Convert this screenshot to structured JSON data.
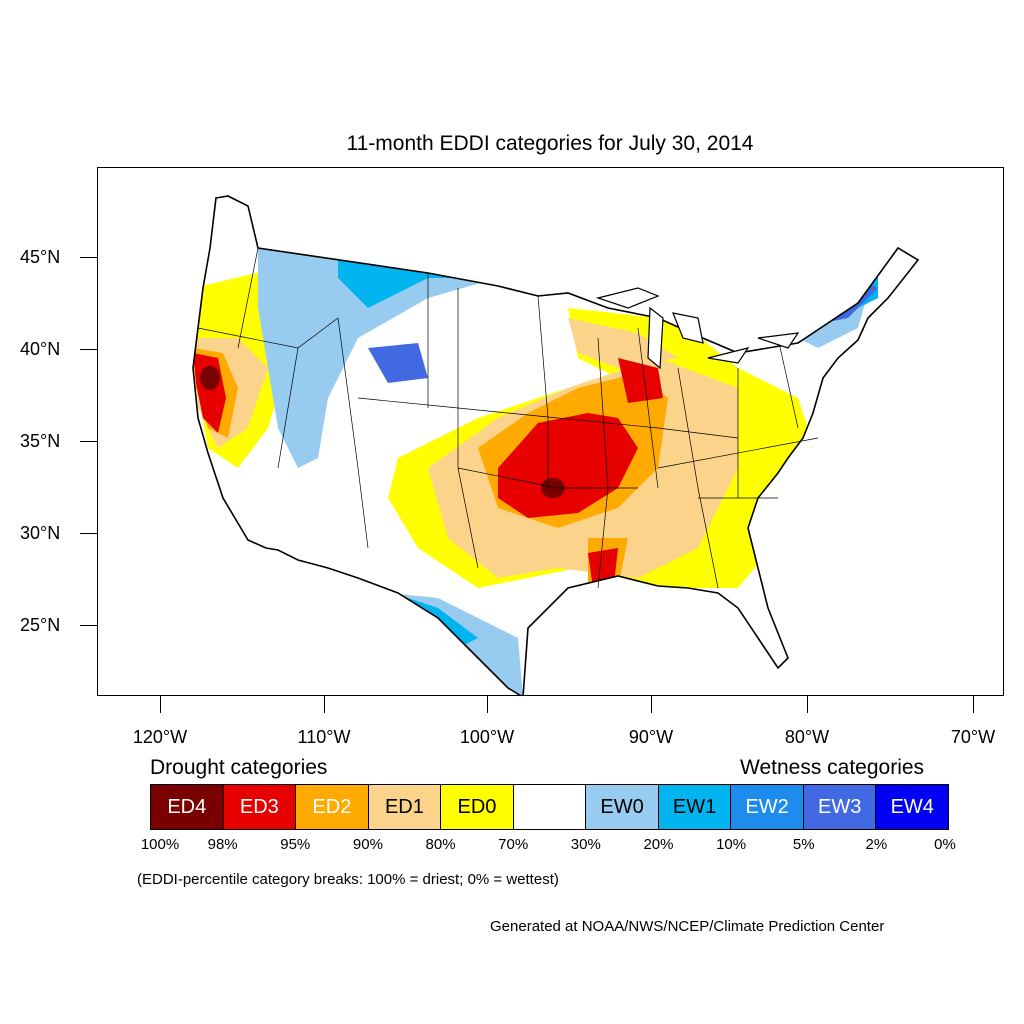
{
  "title": "11-month EDDI categories for July 30, 2014",
  "lat_labels": [
    "45°N",
    "40°N",
    "35°N",
    "30°N",
    "25°N"
  ],
  "lon_labels": [
    "120°W",
    "110°W",
    "100°W",
    "90°W",
    "80°W",
    "70°W"
  ],
  "legend": {
    "drought_heading": "Drought categories",
    "wetness_heading": "Wetness categories",
    "categories": [
      {
        "label": "ED4",
        "color": "#7a0000",
        "text_color": "#ffffff"
      },
      {
        "label": "ED3",
        "color": "#e60000",
        "text_color": "#ffffff"
      },
      {
        "label": "ED2",
        "color": "#ffaa00",
        "text_color": "#ffffff"
      },
      {
        "label": "ED1",
        "color": "#fcd38a",
        "text_color": "#000000"
      },
      {
        "label": "ED0",
        "color": "#ffff00",
        "text_color": "#000000"
      },
      {
        "label": "",
        "color": "#ffffff",
        "text_color": "#000000"
      },
      {
        "label": "EW0",
        "color": "#97cbef",
        "text_color": "#000000"
      },
      {
        "label": "EW1",
        "color": "#00b4f0",
        "text_color": "#000000"
      },
      {
        "label": "EW2",
        "color": "#1e8ced",
        "text_color": "#ffffff"
      },
      {
        "label": "EW3",
        "color": "#4169e1",
        "text_color": "#ffffff"
      },
      {
        "label": "EW4",
        "color": "#0000f5",
        "text_color": "#ffffff"
      }
    ],
    "percent_breaks": [
      "100%",
      "98%",
      "95%",
      "90%",
      "80%",
      "70%",
      "30%",
      "20%",
      "10%",
      "5%",
      "2%",
      "0%"
    ]
  },
  "note": "(EDDI-percentile category breaks: 100% = driest; 0% = wettest)",
  "credit": "Generated at NOAA/NWS/NCEP/Climate Prediction Center"
}
